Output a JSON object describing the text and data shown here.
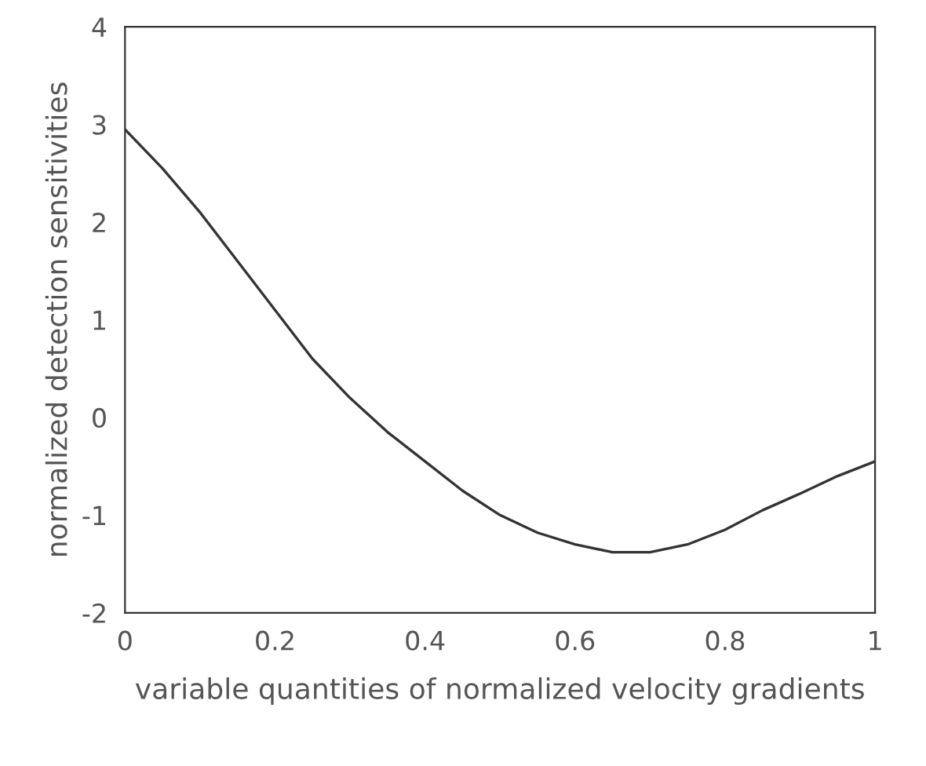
{
  "chart_data": {
    "type": "line",
    "xlabel": "variable quantities of normalized velocity gradients",
    "ylabel": "normalized detection sensitivities",
    "x": [
      0,
      0.05,
      0.1,
      0.15,
      0.2,
      0.25,
      0.3,
      0.35,
      0.4,
      0.45,
      0.5,
      0.55,
      0.6,
      0.65,
      0.7,
      0.75,
      0.8,
      0.85,
      0.9,
      0.95,
      1
    ],
    "series": [
      {
        "color": "#333333",
        "values": [
          2.95,
          2.55,
          2.1,
          1.6,
          1.1,
          0.6,
          0.2,
          -0.15,
          -0.45,
          -0.75,
          -1.0,
          -1.18,
          -1.3,
          -1.38,
          -1.38,
          -1.3,
          -1.15,
          -0.95,
          -0.78,
          -0.6,
          -0.45
        ]
      }
    ],
    "xlim": [
      0,
      1
    ],
    "ylim": [
      -2,
      4
    ],
    "xticks": [
      0,
      0.2,
      0.4,
      0.6,
      0.8,
      1
    ],
    "yticks": [
      -2,
      -1,
      0,
      1,
      2,
      3,
      4
    ],
    "grid": false,
    "legend": false,
    "marker": "none",
    "line_style": "solid"
  }
}
